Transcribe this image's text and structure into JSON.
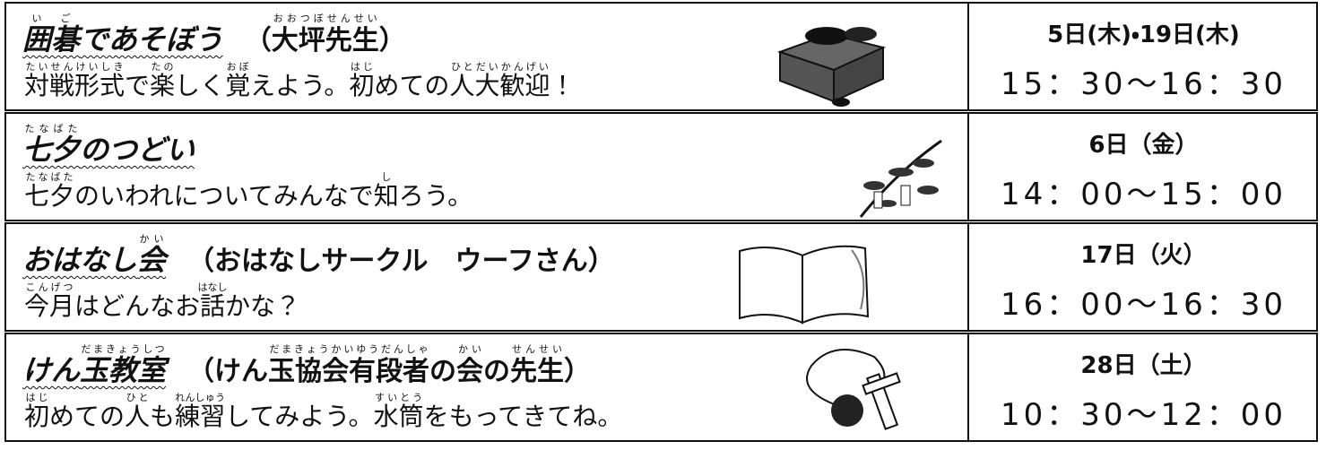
{
  "rows": [
    {
      "title": [
        {
          "text": "囲碁",
          "ruby": "いご"
        },
        {
          "text": "であそぼう"
        }
      ],
      "note": [
        {
          "text": "（"
        },
        {
          "text": "大坪先生",
          "ruby": "おおつぼせんせい"
        },
        {
          "text": "）"
        }
      ],
      "desc": [
        {
          "text": "対戦形式",
          "ruby": "たいせんけいしき"
        },
        {
          "text": "で"
        },
        {
          "text": "楽",
          "ruby": "たの"
        },
        {
          "text": "しく"
        },
        {
          "text": "覚",
          "ruby": "おぼ"
        },
        {
          "text": "えよう。"
        },
        {
          "text": "初",
          "ruby": "はじ"
        },
        {
          "text": "めての"
        },
        {
          "text": "人大歓迎",
          "ruby": "ひとだいかんげい"
        },
        {
          "text": "！"
        }
      ],
      "date": "5日(木)・19日(木)",
      "time": "15：30～16：30"
    },
    {
      "title": [
        {
          "text": "七夕",
          "ruby": "たなばた"
        },
        {
          "text": "のつどい"
        }
      ],
      "desc": [
        {
          "text": "七夕",
          "ruby": "たなばた"
        },
        {
          "text": "のいわれについてみんなで"
        },
        {
          "text": "知",
          "ruby": "し"
        },
        {
          "text": "ろう。"
        }
      ],
      "date": "6日（金）",
      "time": "14：00～15：00"
    },
    {
      "title": [
        {
          "text": "おはなし"
        },
        {
          "text": "会",
          "ruby": "かい"
        }
      ],
      "note": [
        {
          "text": "（おはなしサークル　ウーフさん）"
        }
      ],
      "desc": [
        {
          "text": "今月",
          "ruby": "こんげつ"
        },
        {
          "text": "はどんなお"
        },
        {
          "text": "話",
          "ruby": "はなし"
        },
        {
          "text": "かな？"
        }
      ],
      "date": "17日（火）",
      "time": "16：00～16：30"
    },
    {
      "title": [
        {
          "text": "けん"
        },
        {
          "text": "玉教室",
          "ruby": "だまきょうしつ"
        }
      ],
      "note": [
        {
          "text": "（けん"
        },
        {
          "text": "玉協会有段者",
          "ruby": "だまきょうかいゆうだんしゃ"
        },
        {
          "text": "の"
        },
        {
          "text": "会",
          "ruby": "かい"
        },
        {
          "text": "の"
        },
        {
          "text": "先生",
          "ruby": "せんせい"
        },
        {
          "text": "）"
        }
      ],
      "desc": [
        {
          "text": "初",
          "ruby": "はじ"
        },
        {
          "text": "めての"
        },
        {
          "text": "人",
          "ruby": "ひと"
        },
        {
          "text": "も"
        },
        {
          "text": "練習",
          "ruby": "れんしゅう"
        },
        {
          "text": "してみよう。"
        },
        {
          "text": "水筒",
          "ruby": "すいとう"
        },
        {
          "text": "をもってきてね。"
        }
      ],
      "date": "28日（土）",
      "time": "10：30～12：00"
    }
  ]
}
